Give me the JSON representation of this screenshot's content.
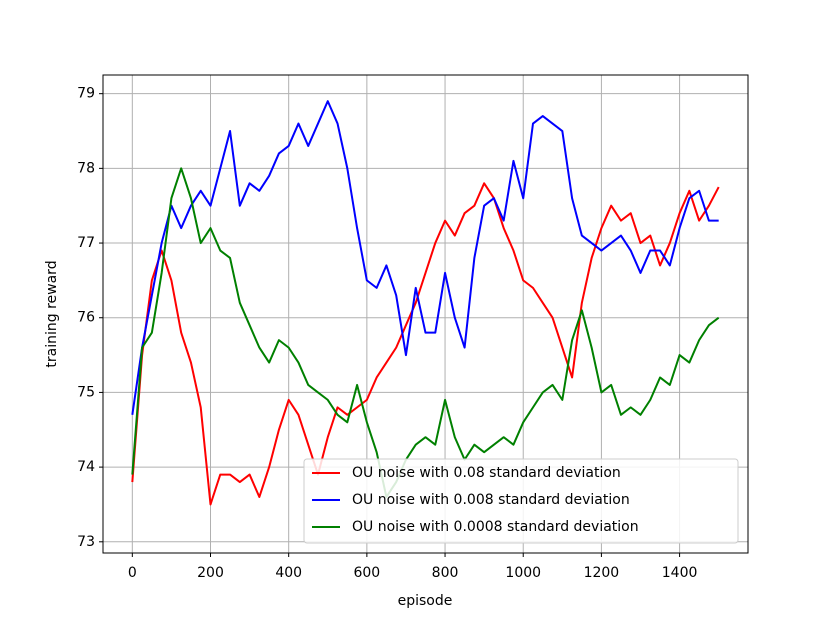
{
  "chart_data": {
    "type": "line",
    "xlabel": "episode",
    "ylabel": "training reward",
    "x": [
      0,
      25,
      50,
      75,
      100,
      125,
      150,
      175,
      200,
      225,
      250,
      275,
      300,
      325,
      350,
      375,
      400,
      425,
      450,
      475,
      500,
      525,
      550,
      575,
      600,
      625,
      650,
      675,
      700,
      725,
      750,
      775,
      800,
      825,
      850,
      875,
      900,
      925,
      950,
      975,
      1000,
      1025,
      1050,
      1075,
      1100,
      1125,
      1150,
      1175,
      1200,
      1225,
      1250,
      1275,
      1300,
      1325,
      1350,
      1375,
      1400,
      1425,
      1450,
      1475,
      1500
    ],
    "series": [
      {
        "name": "OU noise with 0.08 standard deviation",
        "color": "#ff0000",
        "values": [
          73.8,
          75.5,
          76.5,
          76.9,
          76.5,
          75.8,
          75.4,
          74.8,
          73.5,
          73.9,
          73.9,
          73.8,
          73.9,
          73.6,
          74.0,
          74.5,
          74.9,
          74.7,
          74.3,
          73.9,
          74.4,
          74.8,
          74.7,
          74.8,
          74.9,
          75.2,
          75.4,
          75.6,
          75.9,
          76.2,
          76.6,
          77.0,
          77.3,
          77.1,
          77.4,
          77.5,
          77.8,
          77.6,
          77.2,
          76.9,
          76.5,
          76.4,
          76.2,
          76.0,
          75.6,
          75.2,
          76.2,
          76.8,
          77.2,
          77.5,
          77.3,
          77.4,
          77.0,
          77.1,
          76.7,
          77.0,
          77.4,
          77.7,
          77.3,
          77.5,
          77.75
        ]
      },
      {
        "name": "OU noise with 0.008 standard deviation",
        "color": "#0000ff",
        "values": [
          74.7,
          75.6,
          76.3,
          77.0,
          77.5,
          77.2,
          77.5,
          77.7,
          77.5,
          78.0,
          78.5,
          77.5,
          77.8,
          77.7,
          77.9,
          78.2,
          78.3,
          78.6,
          78.3,
          78.6,
          78.9,
          78.6,
          78.0,
          77.2,
          76.5,
          76.4,
          76.7,
          76.3,
          75.5,
          76.4,
          75.8,
          75.8,
          76.6,
          76.0,
          75.6,
          76.8,
          77.5,
          77.6,
          77.3,
          78.1,
          77.6,
          78.6,
          78.7,
          78.6,
          78.5,
          77.6,
          77.1,
          77.0,
          76.9,
          77.0,
          77.1,
          76.9,
          76.6,
          76.9,
          76.9,
          76.7,
          77.2,
          77.6,
          77.7,
          77.3,
          77.3
        ]
      },
      {
        "name": "OU noise with 0.0008 standard deviation",
        "color": "#008000",
        "values": [
          73.9,
          75.6,
          75.8,
          76.6,
          77.6,
          78.0,
          77.6,
          77.0,
          77.2,
          76.9,
          76.8,
          76.2,
          75.9,
          75.6,
          75.4,
          75.7,
          75.6,
          75.4,
          75.1,
          75.0,
          74.9,
          74.7,
          74.6,
          75.1,
          74.6,
          74.2,
          73.6,
          73.8,
          74.1,
          74.3,
          74.4,
          74.3,
          74.9,
          74.4,
          74.1,
          74.3,
          74.2,
          74.3,
          74.4,
          74.3,
          74.6,
          74.8,
          75.0,
          75.1,
          74.9,
          75.7,
          76.1,
          75.6,
          75.0,
          75.1,
          74.7,
          74.8,
          74.7,
          74.9,
          75.2,
          75.1,
          75.5,
          75.4,
          75.7,
          75.9,
          76.0
        ]
      }
    ],
    "xlim": [
      -75,
      1575
    ],
    "ylim": [
      72.85,
      79.25
    ],
    "xticks": [
      0,
      200,
      400,
      600,
      800,
      1000,
      1200,
      1400
    ],
    "yticks": [
      73,
      74,
      75,
      76,
      77,
      78,
      79
    ],
    "grid": true,
    "legend": "lower right"
  }
}
